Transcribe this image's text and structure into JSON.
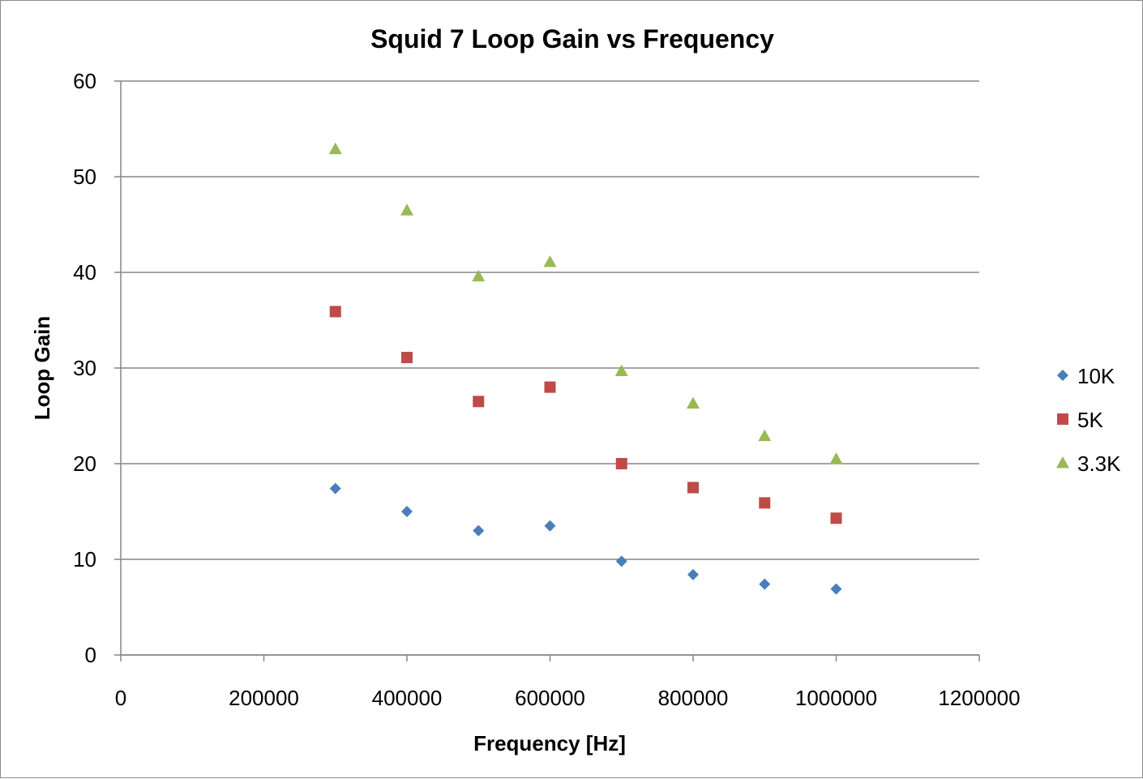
{
  "chart_data": {
    "type": "scatter",
    "title": "Squid 7 Loop Gain vs Frequency",
    "xlabel": "Frequency [Hz]",
    "ylabel": "Loop Gain",
    "xlim": [
      0,
      1200000
    ],
    "ylim": [
      0,
      60
    ],
    "x_ticks": [
      0,
      200000,
      400000,
      600000,
      800000,
      1000000,
      1200000
    ],
    "y_ticks": [
      0,
      10,
      20,
      30,
      40,
      50,
      60
    ],
    "grid": "horizontal major gridlines",
    "legend_position": "right",
    "x": [
      300000,
      400000,
      500000,
      600000,
      700000,
      800000,
      900000,
      1000000
    ],
    "series": [
      {
        "name": "10K",
        "marker": "diamond",
        "color": "#4a7ebb",
        "y": [
          17.4,
          15.0,
          13.0,
          13.5,
          9.8,
          8.4,
          7.4,
          6.9
        ]
      },
      {
        "name": "5K",
        "marker": "square",
        "color": "#be4b48",
        "y": [
          35.9,
          31.1,
          26.5,
          28.0,
          20.0,
          17.5,
          15.9,
          14.3
        ]
      },
      {
        "name": "3.3K",
        "marker": "triangle",
        "color": "#98b954",
        "y": [
          52.9,
          46.5,
          39.6,
          41.1,
          29.7,
          26.3,
          22.9,
          20.5
        ]
      }
    ]
  }
}
